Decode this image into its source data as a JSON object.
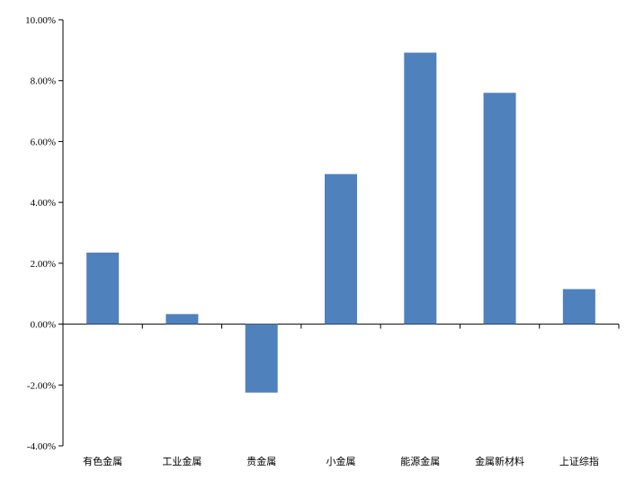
{
  "chart_data": {
    "type": "bar",
    "categories": [
      "有色金属",
      "工业金属",
      "贵金属",
      "小金属",
      "能源金属",
      "金属新材料",
      "上证综指"
    ],
    "values": [
      2.35,
      0.33,
      -2.25,
      4.93,
      8.92,
      7.6,
      1.15
    ],
    "value_unit": "%",
    "ylim": [
      -4,
      10
    ],
    "yticks": [
      -4,
      -2,
      0,
      2,
      4,
      6,
      8,
      10
    ],
    "ytick_labels": [
      "-4.00%",
      "-2.00%",
      "0.00%",
      "2.00%",
      "4.00%",
      "6.00%",
      "8.00%",
      "10.00%"
    ],
    "bar_color": "#4F81BD",
    "grid": false,
    "legend": false
  }
}
